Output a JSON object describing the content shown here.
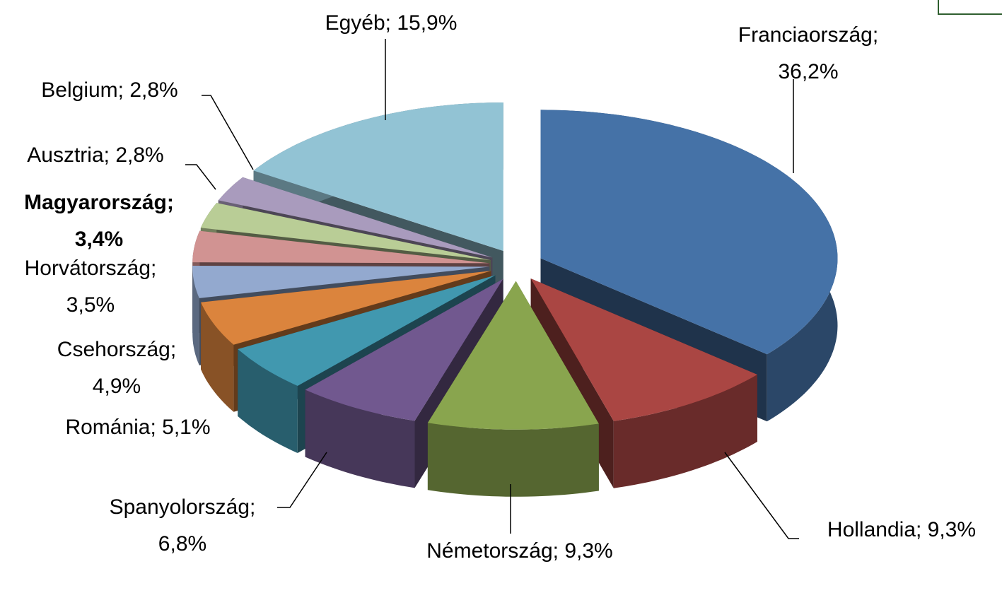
{
  "chart_data": {
    "type": "pie3d",
    "values": [
      36.2,
      9.3,
      9.3,
      6.8,
      5.1,
      4.9,
      3.5,
      3.4,
      2.8,
      2.8,
      15.9
    ],
    "value_labels": [
      "Franciaország; 36,2%",
      "Hollandia; 9,3%",
      "Németország; 9,3%",
      "Spanyolország; 6,8%",
      "Románia; 5,1%",
      "Csehország; 4,9%",
      "Horvátország; 3,5%",
      "Magyarország; 3,4%",
      "Ausztria; 2,8%",
      "Belgium; 2,8%",
      "Egyéb; 15,9%"
    ],
    "colors": [
      "#4572a7",
      "#aa4643",
      "#89a54e",
      "#71588f",
      "#4198af",
      "#db843d",
      "#93a9cf",
      "#d19392",
      "#b9cd96",
      "#a99bbd",
      "#92c3d4"
    ],
    "bold_index": 7
  }
}
